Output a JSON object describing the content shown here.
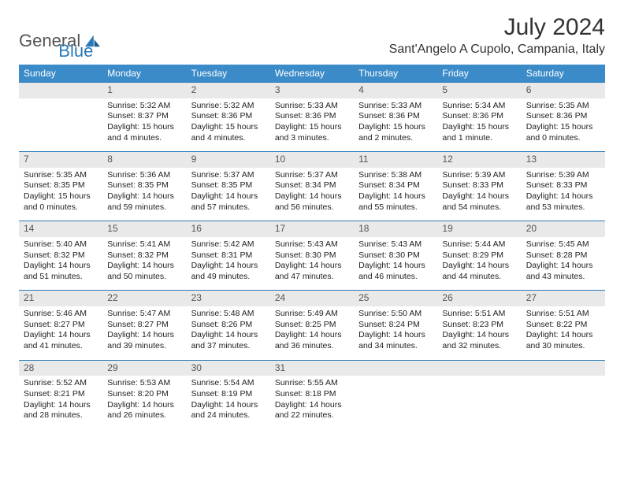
{
  "logo": {
    "part1": "General",
    "part2": "Blue"
  },
  "title": "July 2024",
  "location": "Sant'Angelo A Cupolo, Campania, Italy",
  "header_bg": "#3b8bc9",
  "accent": "#2a7ab8",
  "daynum_bg": "#e9e9e9",
  "day_headers": [
    "Sunday",
    "Monday",
    "Tuesday",
    "Wednesday",
    "Thursday",
    "Friday",
    "Saturday"
  ],
  "weeks": [
    {
      "days": [
        {
          "num": "",
          "sunrise": "",
          "sunset": "",
          "dl1": "",
          "dl2": ""
        },
        {
          "num": "1",
          "sunrise": "Sunrise: 5:32 AM",
          "sunset": "Sunset: 8:37 PM",
          "dl1": "Daylight: 15 hours",
          "dl2": "and 4 minutes."
        },
        {
          "num": "2",
          "sunrise": "Sunrise: 5:32 AM",
          "sunset": "Sunset: 8:36 PM",
          "dl1": "Daylight: 15 hours",
          "dl2": "and 4 minutes."
        },
        {
          "num": "3",
          "sunrise": "Sunrise: 5:33 AM",
          "sunset": "Sunset: 8:36 PM",
          "dl1": "Daylight: 15 hours",
          "dl2": "and 3 minutes."
        },
        {
          "num": "4",
          "sunrise": "Sunrise: 5:33 AM",
          "sunset": "Sunset: 8:36 PM",
          "dl1": "Daylight: 15 hours",
          "dl2": "and 2 minutes."
        },
        {
          "num": "5",
          "sunrise": "Sunrise: 5:34 AM",
          "sunset": "Sunset: 8:36 PM",
          "dl1": "Daylight: 15 hours",
          "dl2": "and 1 minute."
        },
        {
          "num": "6",
          "sunrise": "Sunrise: 5:35 AM",
          "sunset": "Sunset: 8:36 PM",
          "dl1": "Daylight: 15 hours",
          "dl2": "and 0 minutes."
        }
      ]
    },
    {
      "days": [
        {
          "num": "7",
          "sunrise": "Sunrise: 5:35 AM",
          "sunset": "Sunset: 8:35 PM",
          "dl1": "Daylight: 15 hours",
          "dl2": "and 0 minutes."
        },
        {
          "num": "8",
          "sunrise": "Sunrise: 5:36 AM",
          "sunset": "Sunset: 8:35 PM",
          "dl1": "Daylight: 14 hours",
          "dl2": "and 59 minutes."
        },
        {
          "num": "9",
          "sunrise": "Sunrise: 5:37 AM",
          "sunset": "Sunset: 8:35 PM",
          "dl1": "Daylight: 14 hours",
          "dl2": "and 57 minutes."
        },
        {
          "num": "10",
          "sunrise": "Sunrise: 5:37 AM",
          "sunset": "Sunset: 8:34 PM",
          "dl1": "Daylight: 14 hours",
          "dl2": "and 56 minutes."
        },
        {
          "num": "11",
          "sunrise": "Sunrise: 5:38 AM",
          "sunset": "Sunset: 8:34 PM",
          "dl1": "Daylight: 14 hours",
          "dl2": "and 55 minutes."
        },
        {
          "num": "12",
          "sunrise": "Sunrise: 5:39 AM",
          "sunset": "Sunset: 8:33 PM",
          "dl1": "Daylight: 14 hours",
          "dl2": "and 54 minutes."
        },
        {
          "num": "13",
          "sunrise": "Sunrise: 5:39 AM",
          "sunset": "Sunset: 8:33 PM",
          "dl1": "Daylight: 14 hours",
          "dl2": "and 53 minutes."
        }
      ]
    },
    {
      "days": [
        {
          "num": "14",
          "sunrise": "Sunrise: 5:40 AM",
          "sunset": "Sunset: 8:32 PM",
          "dl1": "Daylight: 14 hours",
          "dl2": "and 51 minutes."
        },
        {
          "num": "15",
          "sunrise": "Sunrise: 5:41 AM",
          "sunset": "Sunset: 8:32 PM",
          "dl1": "Daylight: 14 hours",
          "dl2": "and 50 minutes."
        },
        {
          "num": "16",
          "sunrise": "Sunrise: 5:42 AM",
          "sunset": "Sunset: 8:31 PM",
          "dl1": "Daylight: 14 hours",
          "dl2": "and 49 minutes."
        },
        {
          "num": "17",
          "sunrise": "Sunrise: 5:43 AM",
          "sunset": "Sunset: 8:30 PM",
          "dl1": "Daylight: 14 hours",
          "dl2": "and 47 minutes."
        },
        {
          "num": "18",
          "sunrise": "Sunrise: 5:43 AM",
          "sunset": "Sunset: 8:30 PM",
          "dl1": "Daylight: 14 hours",
          "dl2": "and 46 minutes."
        },
        {
          "num": "19",
          "sunrise": "Sunrise: 5:44 AM",
          "sunset": "Sunset: 8:29 PM",
          "dl1": "Daylight: 14 hours",
          "dl2": "and 44 minutes."
        },
        {
          "num": "20",
          "sunrise": "Sunrise: 5:45 AM",
          "sunset": "Sunset: 8:28 PM",
          "dl1": "Daylight: 14 hours",
          "dl2": "and 43 minutes."
        }
      ]
    },
    {
      "days": [
        {
          "num": "21",
          "sunrise": "Sunrise: 5:46 AM",
          "sunset": "Sunset: 8:27 PM",
          "dl1": "Daylight: 14 hours",
          "dl2": "and 41 minutes."
        },
        {
          "num": "22",
          "sunrise": "Sunrise: 5:47 AM",
          "sunset": "Sunset: 8:27 PM",
          "dl1": "Daylight: 14 hours",
          "dl2": "and 39 minutes."
        },
        {
          "num": "23",
          "sunrise": "Sunrise: 5:48 AM",
          "sunset": "Sunset: 8:26 PM",
          "dl1": "Daylight: 14 hours",
          "dl2": "and 37 minutes."
        },
        {
          "num": "24",
          "sunrise": "Sunrise: 5:49 AM",
          "sunset": "Sunset: 8:25 PM",
          "dl1": "Daylight: 14 hours",
          "dl2": "and 36 minutes."
        },
        {
          "num": "25",
          "sunrise": "Sunrise: 5:50 AM",
          "sunset": "Sunset: 8:24 PM",
          "dl1": "Daylight: 14 hours",
          "dl2": "and 34 minutes."
        },
        {
          "num": "26",
          "sunrise": "Sunrise: 5:51 AM",
          "sunset": "Sunset: 8:23 PM",
          "dl1": "Daylight: 14 hours",
          "dl2": "and 32 minutes."
        },
        {
          "num": "27",
          "sunrise": "Sunrise: 5:51 AM",
          "sunset": "Sunset: 8:22 PM",
          "dl1": "Daylight: 14 hours",
          "dl2": "and 30 minutes."
        }
      ]
    },
    {
      "days": [
        {
          "num": "28",
          "sunrise": "Sunrise: 5:52 AM",
          "sunset": "Sunset: 8:21 PM",
          "dl1": "Daylight: 14 hours",
          "dl2": "and 28 minutes."
        },
        {
          "num": "29",
          "sunrise": "Sunrise: 5:53 AM",
          "sunset": "Sunset: 8:20 PM",
          "dl1": "Daylight: 14 hours",
          "dl2": "and 26 minutes."
        },
        {
          "num": "30",
          "sunrise": "Sunrise: 5:54 AM",
          "sunset": "Sunset: 8:19 PM",
          "dl1": "Daylight: 14 hours",
          "dl2": "and 24 minutes."
        },
        {
          "num": "31",
          "sunrise": "Sunrise: 5:55 AM",
          "sunset": "Sunset: 8:18 PM",
          "dl1": "Daylight: 14 hours",
          "dl2": "and 22 minutes."
        },
        {
          "num": "",
          "sunrise": "",
          "sunset": "",
          "dl1": "",
          "dl2": ""
        },
        {
          "num": "",
          "sunrise": "",
          "sunset": "",
          "dl1": "",
          "dl2": ""
        },
        {
          "num": "",
          "sunrise": "",
          "sunset": "",
          "dl1": "",
          "dl2": ""
        }
      ]
    }
  ]
}
